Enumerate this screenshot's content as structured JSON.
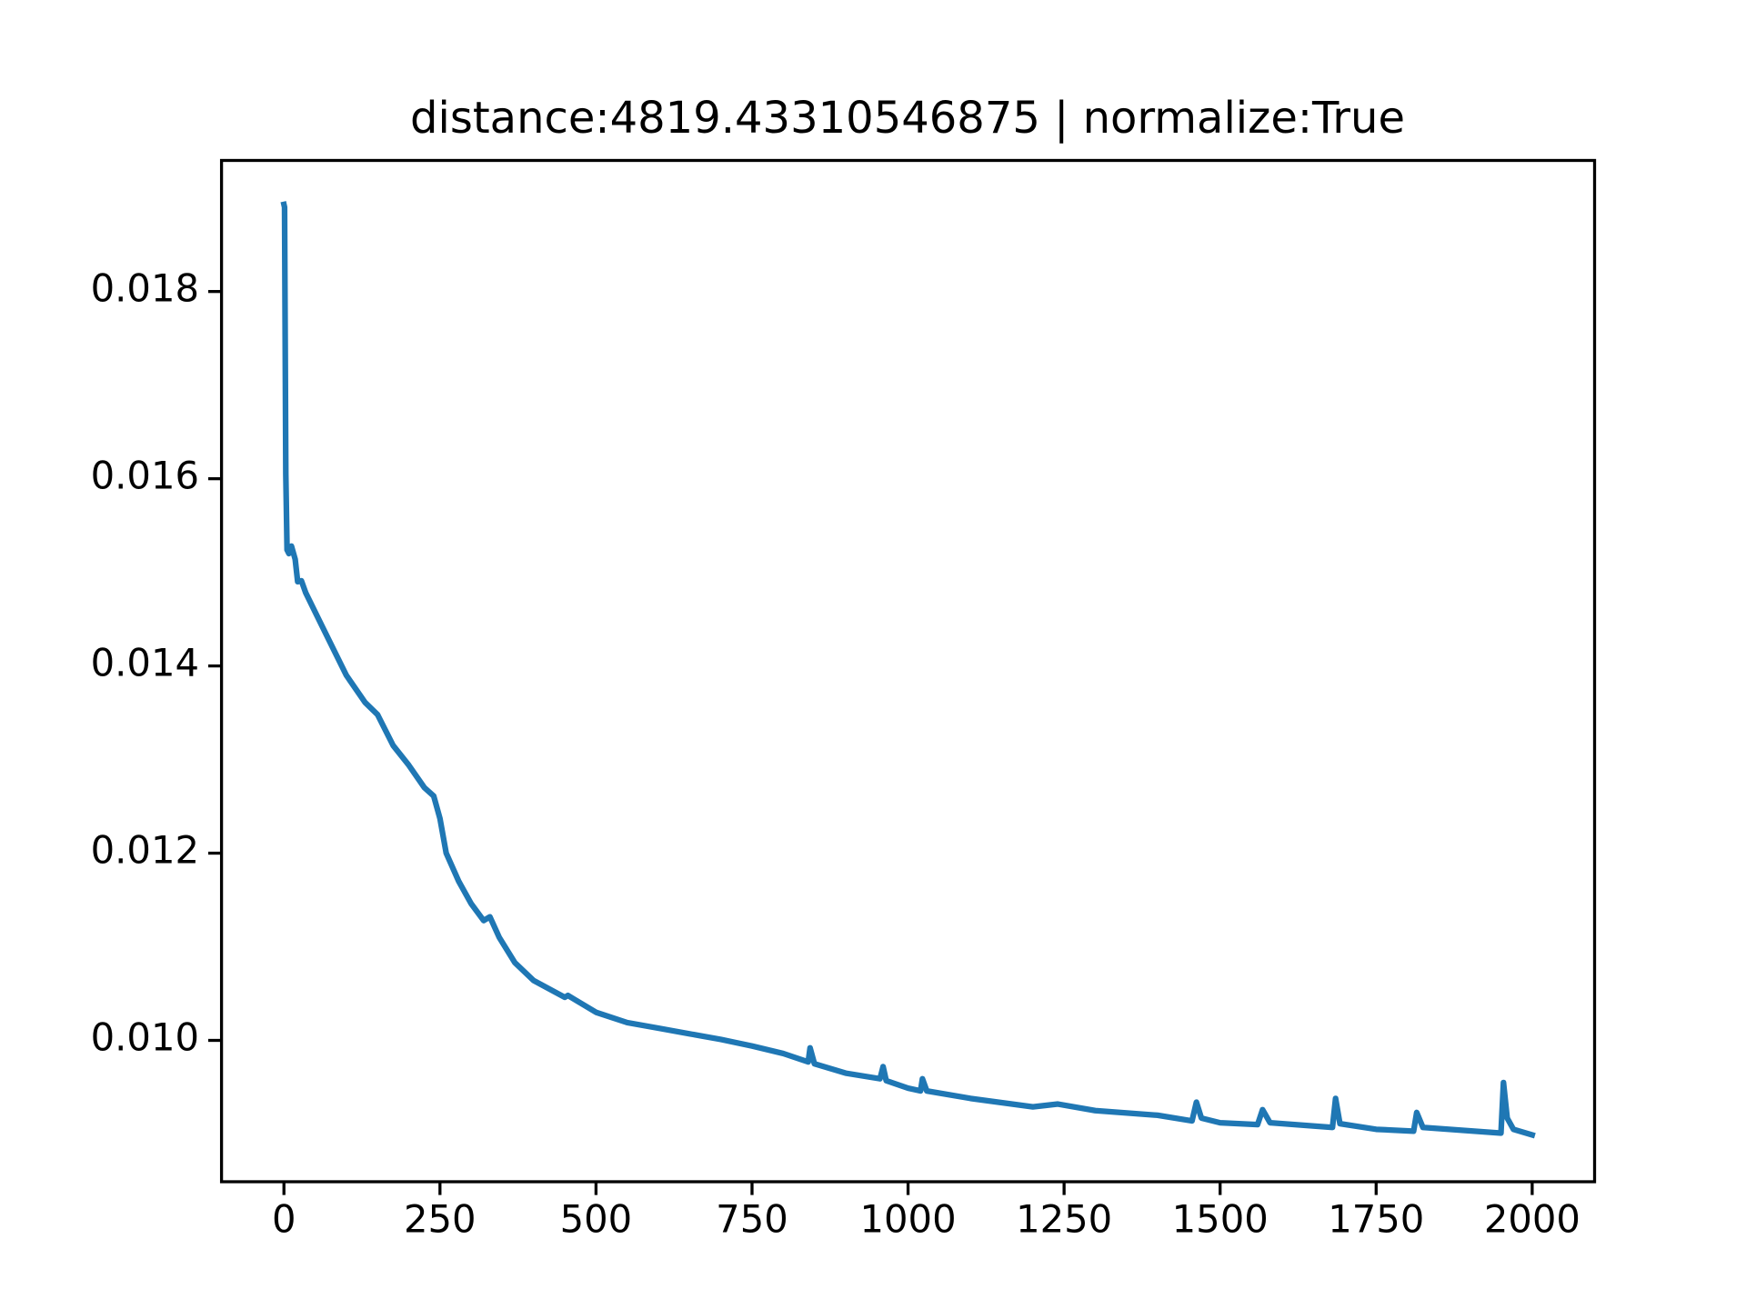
{
  "chart_data": {
    "type": "line",
    "title": "distance:4819.43310546875 | normalize:True",
    "x": [
      0,
      1,
      3,
      5,
      8,
      12,
      18,
      22,
      28,
      35,
      60,
      80,
      100,
      130,
      150,
      175,
      200,
      225,
      240,
      250,
      260,
      280,
      300,
      320,
      330,
      345,
      370,
      400,
      450,
      455,
      500,
      550,
      600,
      650,
      700,
      750,
      800,
      840,
      843,
      850,
      900,
      955,
      960,
      965,
      1000,
      1020,
      1023,
      1030,
      1100,
      1200,
      1240,
      1300,
      1400,
      1455,
      1462,
      1470,
      1500,
      1560,
      1568,
      1580,
      1680,
      1685,
      1692,
      1750,
      1810,
      1815,
      1825,
      1950,
      1954,
      1960,
      1970,
      2000
    ],
    "values": [
      0.01893,
      0.0189,
      0.01605,
      0.01524,
      0.0152,
      0.01528,
      0.01514,
      0.0149,
      0.01491,
      0.01478,
      0.01444,
      0.01417,
      0.0139,
      0.01361,
      0.01348,
      0.01315,
      0.01294,
      0.0127,
      0.01261,
      0.01237,
      0.012,
      0.0117,
      0.01146,
      0.01128,
      0.01132,
      0.0111,
      0.01083,
      0.01064,
      0.01046,
      0.01048,
      0.0103,
      0.01019,
      0.01013,
      0.01007,
      0.01001,
      0.00994,
      0.00986,
      0.00977,
      0.00992,
      0.00975,
      0.00965,
      0.00959,
      0.00972,
      0.00957,
      0.00949,
      0.00946,
      0.00959,
      0.00946,
      0.00938,
      0.00929,
      0.00932,
      0.00925,
      0.0092,
      0.00914,
      0.00934,
      0.00917,
      0.00912,
      0.0091,
      0.00926,
      0.00912,
      0.00907,
      0.00938,
      0.00911,
      0.00905,
      0.00903,
      0.00923,
      0.00907,
      0.00901,
      0.00955,
      0.00917,
      0.00905,
      0.00899
    ],
    "color": "#1f77b4",
    "xlim": [
      -100,
      2100
    ],
    "xticks": [
      0,
      250,
      500,
      750,
      1000,
      1250,
      1500,
      1750,
      2000
    ],
    "ylim": [
      0.00849,
      0.0194
    ],
    "yticks": [
      {
        "value": 0.01,
        "label": "0.010"
      },
      0.012,
      0.014,
      0.016,
      0.018
    ],
    "grid": false
  }
}
